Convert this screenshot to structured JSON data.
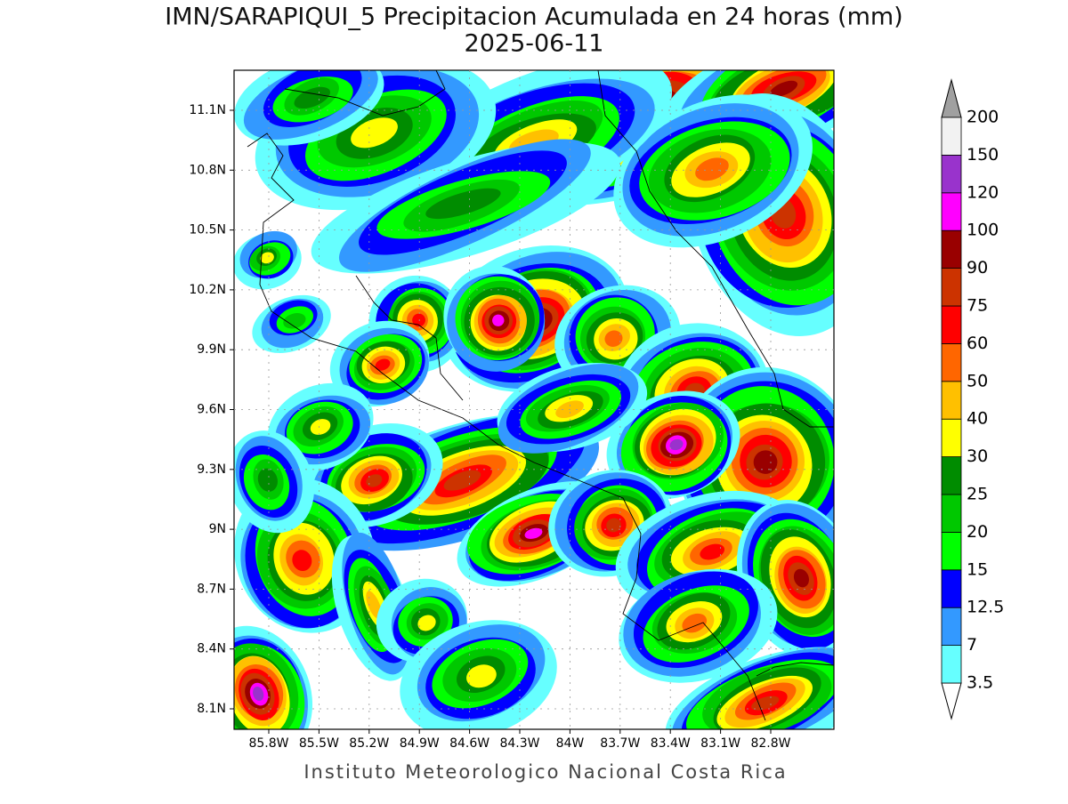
{
  "title": "IMN/SARAPIQUI_5 Precipitacion Acumulada en 24 horas (mm)",
  "date": "2025-06-11",
  "lat_labels": [
    "11.1N",
    "10.8N",
    "10.5N",
    "10.2N",
    "9.9N",
    "9.6N",
    "9.3N",
    "9N",
    "8.7N",
    "8.4N",
    "8.1N"
  ],
  "lon_labels": [
    "85.8W",
    "85.5W",
    "85.2W",
    "84.9W",
    "84.6W",
    "84.3W",
    "84W",
    "83.7W",
    "83.4W",
    "83.1W",
    "82.8W"
  ],
  "colorbar": {
    "levels": [
      3.5,
      7,
      12.5,
      15,
      20,
      25,
      30,
      40,
      50,
      60,
      75,
      90,
      100,
      120,
      150,
      200
    ],
    "bin_colors": [
      "#66ffff",
      "#3399ff",
      "#0000ff",
      "#00ff00",
      "#00c800",
      "#008c00",
      "#ffff00",
      "#ffc000",
      "#ff6600",
      "#ff0000",
      "#cc3300",
      "#990000",
      "#ff00ff",
      "#9933cc",
      "#f2f2f2"
    ],
    "under_color": "#ffffff",
    "over_color": "#a0a0a0"
  },
  "footer": "Instituto Meteorologico Nacional Costa Rica"
}
